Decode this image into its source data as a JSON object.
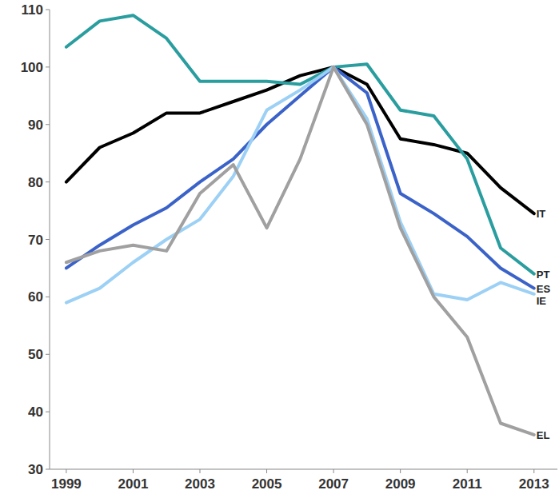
{
  "chart_data": {
    "type": "line",
    "x": [
      1999,
      2000,
      2001,
      2002,
      2003,
      2004,
      2005,
      2006,
      2007,
      2008,
      2009,
      2010,
      2011,
      2012,
      2013
    ],
    "series": [
      {
        "name": "IT",
        "color": "#000000",
        "values": [
          80,
          86,
          88.5,
          92,
          92,
          94,
          96,
          98.5,
          100,
          97,
          87.5,
          86.5,
          85,
          79,
          74.5
        ]
      },
      {
        "name": "PT",
        "color": "#2a9d9f",
        "values": [
          103.5,
          108,
          109,
          105,
          97.5,
          97.5,
          97.5,
          97,
          100,
          100.5,
          92.5,
          91.5,
          84,
          68.5,
          64
        ]
      },
      {
        "name": "ES",
        "color": "#3a62c8",
        "values": [
          65,
          69,
          72.5,
          75.5,
          80,
          84,
          90,
          95,
          100,
          95.5,
          78,
          74.5,
          70.5,
          65,
          61.5
        ]
      },
      {
        "name": "IE",
        "color": "#9cd0f5",
        "values": [
          59,
          61.5,
          66,
          70,
          73.5,
          81,
          92.5,
          96,
          100,
          91,
          73,
          60.5,
          59.5,
          62.5,
          60.5
        ]
      },
      {
        "name": "EL",
        "color": "#a0a0a0",
        "values": [
          66,
          68,
          69,
          68,
          78,
          83,
          72,
          84,
          100,
          90,
          72,
          60,
          53,
          38,
          36
        ]
      }
    ],
    "xlim": [
      1998.5,
      2013.7
    ],
    "xticks": [
      1999,
      2001,
      2003,
      2005,
      2007,
      2009,
      2011,
      2013
    ],
    "ylim": [
      30,
      110
    ],
    "yticks": [
      30,
      40,
      50,
      60,
      70,
      80,
      90,
      100,
      110
    ],
    "grid": false
  }
}
